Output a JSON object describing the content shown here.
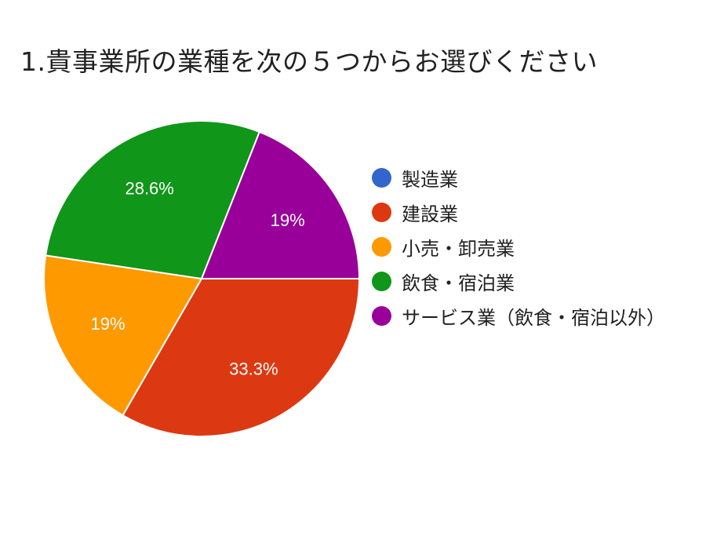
{
  "chart_data": {
    "type": "pie",
    "title": "1.貴事業所の業種を次の５つからお選びください",
    "categories": [
      "製造業",
      "建設業",
      "小売・卸売業",
      "飲食・宿泊業",
      "サービス業（飲食・宿泊以外）"
    ],
    "values": [
      0,
      33.3,
      19,
      28.6,
      19
    ],
    "data_labels": [
      "",
      "33.3%",
      "19%",
      "28.6%",
      "19%"
    ],
    "colors": [
      "#3366cc",
      "#dc3912",
      "#ff9900",
      "#109618",
      "#990099"
    ],
    "legend_position": "right"
  }
}
